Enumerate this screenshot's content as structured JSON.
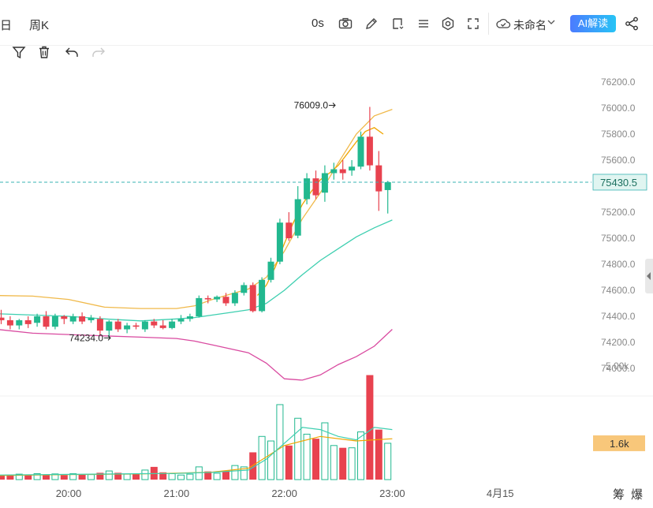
{
  "toolbar": {
    "tab_day": "日",
    "tab_week": "周K",
    "countdown": "0s",
    "chart_name": "未命名",
    "ai_label": "AI解读"
  },
  "corner": {
    "left": "筹",
    "right": "爆"
  },
  "colors": {
    "up": "#22b88f",
    "down": "#e8424f",
    "ma_yellow": "#f0a500",
    "boll_mid": "#3ecfb0",
    "boll_lower": "#d94aa0",
    "boll_upper": "#f0b94a",
    "price_line": "#3ab3b3",
    "price_tag": "#e0f5f1",
    "vol_tag": "#f8c77a"
  },
  "chart_data": {
    "type": "candlestick",
    "price_axis": {
      "ticks": [
        "76200.0",
        "76000.0",
        "75800.0",
        "75600.0",
        "75400.0",
        "75200.0",
        "75000.0",
        "74800.0",
        "74600.0",
        "74400.0",
        "74200.0",
        "74000.0"
      ],
      "range": [
        73900,
        76300
      ]
    },
    "time_axis": {
      "ticks": [
        {
          "label": "20:00",
          "t": 0
        },
        {
          "label": "21:00",
          "t": 12
        },
        {
          "label": "22:00",
          "t": 24
        },
        {
          "label": "23:00",
          "t": 36
        },
        {
          "label": "4月15",
          "t": 48
        }
      ],
      "bars_per_hour": 12
    },
    "current_price": "75430.5",
    "current_price_value": 75430.5,
    "high_label": "76009.0",
    "high_value": 76009,
    "high_t": 29.3,
    "low_label": "74234.0",
    "low_value": 74234,
    "low_t": 4.3,
    "candles": [
      {
        "t": -7.5,
        "o": 74390,
        "h": 74450,
        "c": 74370,
        "l": 74340
      },
      {
        "t": -6.5,
        "o": 74370,
        "h": 74400,
        "c": 74330,
        "l": 74300
      },
      {
        "t": -5.5,
        "o": 74330,
        "h": 74380,
        "c": 74370,
        "l": 74300
      },
      {
        "t": -4.5,
        "o": 74370,
        "h": 74400,
        "c": 74340,
        "l": 74310
      },
      {
        "t": -3.5,
        "o": 74350,
        "h": 74420,
        "c": 74400,
        "l": 74320
      },
      {
        "t": -2.5,
        "o": 74400,
        "h": 74440,
        "c": 74320,
        "l": 74300
      },
      {
        "t": -1.5,
        "o": 74320,
        "h": 74420,
        "c": 74400,
        "l": 74300
      },
      {
        "t": -0.5,
        "o": 74400,
        "h": 74410,
        "c": 74380,
        "l": 74340
      },
      {
        "t": 0.5,
        "o": 74360,
        "h": 74420,
        "c": 74400,
        "l": 74340
      },
      {
        "t": 1.5,
        "o": 74400,
        "h": 74430,
        "c": 74360,
        "l": 74340
      },
      {
        "t": 2.5,
        "o": 74370,
        "h": 74410,
        "c": 74390,
        "l": 74350
      },
      {
        "t": 3.5,
        "o": 74380,
        "h": 74400,
        "c": 74290,
        "l": 74260
      },
      {
        "t": 4.5,
        "o": 74290,
        "h": 74370,
        "c": 74360,
        "l": 74234
      },
      {
        "t": 5.5,
        "o": 74360,
        "h": 74380,
        "c": 74300,
        "l": 74280
      },
      {
        "t": 6.5,
        "o": 74300,
        "h": 74350,
        "c": 74330,
        "l": 74270
      },
      {
        "t": 7.5,
        "o": 74330,
        "h": 74350,
        "c": 74320,
        "l": 74300
      },
      {
        "t": 8.5,
        "o": 74300,
        "h": 74370,
        "c": 74360,
        "l": 74280
      },
      {
        "t": 9.5,
        "o": 74360,
        "h": 74380,
        "c": 74330,
        "l": 74310
      },
      {
        "t": 10.5,
        "o": 74330,
        "h": 74370,
        "c": 74310,
        "l": 74300
      },
      {
        "t": 11.5,
        "o": 74310,
        "h": 74380,
        "c": 74360,
        "l": 74300
      },
      {
        "t": 12.5,
        "o": 74360,
        "h": 74410,
        "c": 74380,
        "l": 74340
      },
      {
        "t": 13.5,
        "o": 74380,
        "h": 74420,
        "c": 74400,
        "l": 74360
      },
      {
        "t": 14.5,
        "o": 74400,
        "h": 74560,
        "c": 74540,
        "l": 74390
      },
      {
        "t": 15.5,
        "o": 74540,
        "h": 74560,
        "c": 74530,
        "l": 74500
      },
      {
        "t": 16.5,
        "o": 74530,
        "h": 74560,
        "c": 74550,
        "l": 74510
      },
      {
        "t": 17.5,
        "o": 74550,
        "h": 74580,
        "c": 74500,
        "l": 74480
      },
      {
        "t": 18.5,
        "o": 74500,
        "h": 74600,
        "c": 74580,
        "l": 74480
      },
      {
        "t": 19.5,
        "o": 74580,
        "h": 74660,
        "c": 74640,
        "l": 74560
      },
      {
        "t": 20.5,
        "o": 74640,
        "h": 74660,
        "c": 74440,
        "l": 74430
      },
      {
        "t": 21.5,
        "o": 74440,
        "h": 74700,
        "c": 74680,
        "l": 74430
      },
      {
        "t": 22.5,
        "o": 74680,
        "h": 74850,
        "c": 74820,
        "l": 74660
      },
      {
        "t": 23.5,
        "o": 74820,
        "h": 75150,
        "c": 75120,
        "l": 74800
      },
      {
        "t": 24.5,
        "o": 75120,
        "h": 75200,
        "c": 75000,
        "l": 74980
      },
      {
        "t": 25.5,
        "o": 75020,
        "h": 75400,
        "c": 75300,
        "l": 75000
      },
      {
        "t": 26.5,
        "o": 75300,
        "h": 75500,
        "c": 75460,
        "l": 75260
      },
      {
        "t": 27.5,
        "o": 75460,
        "h": 75520,
        "c": 75330,
        "l": 75300
      },
      {
        "t": 28.5,
        "o": 75350,
        "h": 75560,
        "c": 75500,
        "l": 75280
      },
      {
        "t": 29.5,
        "o": 75500,
        "h": 75580,
        "c": 75530,
        "l": 75450
      },
      {
        "t": 30.5,
        "o": 75530,
        "h": 75600,
        "c": 75500,
        "l": 75450
      },
      {
        "t": 31.5,
        "o": 75520,
        "h": 75600,
        "c": 75550,
        "l": 75480
      },
      {
        "t": 32.5,
        "o": 75550,
        "h": 75820,
        "c": 75780,
        "l": 75530
      },
      {
        "t": 33.5,
        "o": 75780,
        "h": 76009,
        "c": 75560,
        "l": 75520
      },
      {
        "t": 34.5,
        "o": 75560,
        "h": 75670,
        "c": 75360,
        "l": 75210
      },
      {
        "t": 35.5,
        "o": 75370,
        "h": 75440,
        "c": 75430.5,
        "l": 75190
      }
    ],
    "bollinger": {
      "upper": [
        [
          -8,
          74560
        ],
        [
          -4,
          74555
        ],
        [
          0,
          74530
        ],
        [
          4,
          74470
        ],
        [
          8,
          74460
        ],
        [
          12,
          74460
        ],
        [
          14,
          74480
        ],
        [
          16,
          74530
        ],
        [
          18,
          74570
        ],
        [
          20,
          74610
        ],
        [
          22,
          74700
        ],
        [
          24,
          74900
        ],
        [
          26,
          75150
        ],
        [
          28,
          75350
        ],
        [
          30,
          75580
        ],
        [
          32,
          75800
        ],
        [
          34,
          75940
        ],
        [
          36,
          75990
        ]
      ],
      "mid": [
        [
          -8,
          74420
        ],
        [
          -4,
          74410
        ],
        [
          0,
          74400
        ],
        [
          4,
          74380
        ],
        [
          8,
          74365
        ],
        [
          12,
          74380
        ],
        [
          14,
          74390
        ],
        [
          16,
          74410
        ],
        [
          18,
          74430
        ],
        [
          20,
          74450
        ],
        [
          22,
          74500
        ],
        [
          24,
          74600
        ],
        [
          26,
          74720
        ],
        [
          28,
          74830
        ],
        [
          30,
          74920
        ],
        [
          32,
          75010
        ],
        [
          34,
          75080
        ],
        [
          36,
          75140
        ]
      ],
      "lower": [
        [
          -8,
          74300
        ],
        [
          -4,
          74270
        ],
        [
          0,
          74260
        ],
        [
          4,
          74250
        ],
        [
          8,
          74240
        ],
        [
          12,
          74230
        ],
        [
          14,
          74210
        ],
        [
          16,
          74180
        ],
        [
          18,
          74150
        ],
        [
          20,
          74120
        ],
        [
          22,
          74040
        ],
        [
          24,
          73920
        ],
        [
          26,
          73910
        ],
        [
          28,
          73950
        ],
        [
          30,
          74030
        ],
        [
          32,
          74090
        ],
        [
          34,
          74170
        ],
        [
          36,
          74300
        ]
      ],
      "ma5": [
        [
          21,
          74560
        ],
        [
          22,
          74640
        ],
        [
          23,
          74780
        ],
        [
          24,
          74960
        ],
        [
          25,
          75120
        ],
        [
          26,
          75260
        ],
        [
          27,
          75360
        ],
        [
          28,
          75450
        ],
        [
          29,
          75500
        ],
        [
          30,
          75560
        ],
        [
          31,
          75650
        ],
        [
          32,
          75740
        ],
        [
          33,
          75820
        ],
        [
          34,
          75850
        ],
        [
          35,
          75800
        ]
      ]
    },
    "volume": {
      "axis_label": "5.00k",
      "axis_value": 5000,
      "current": "1.6k",
      "current_value": 1600,
      "bars": [
        {
          "t": -7.5,
          "v": 180,
          "up": false
        },
        {
          "t": -6.5,
          "v": 220,
          "up": false
        },
        {
          "t": -5.5,
          "v": 240,
          "up": true
        },
        {
          "t": -4.5,
          "v": 200,
          "up": false
        },
        {
          "t": -3.5,
          "v": 260,
          "up": true
        },
        {
          "t": -2.5,
          "v": 210,
          "up": false
        },
        {
          "t": -1.5,
          "v": 250,
          "up": true
        },
        {
          "t": -0.5,
          "v": 200,
          "up": false
        },
        {
          "t": 0.5,
          "v": 260,
          "up": true
        },
        {
          "t": 1.5,
          "v": 240,
          "up": false
        },
        {
          "t": 2.5,
          "v": 220,
          "up": true
        },
        {
          "t": 3.5,
          "v": 300,
          "up": false
        },
        {
          "t": 4.5,
          "v": 380,
          "up": true
        },
        {
          "t": 5.5,
          "v": 300,
          "up": false
        },
        {
          "t": 6.5,
          "v": 240,
          "up": true
        },
        {
          "t": 7.5,
          "v": 260,
          "up": false
        },
        {
          "t": 8.5,
          "v": 420,
          "up": true
        },
        {
          "t": 9.5,
          "v": 560,
          "up": false
        },
        {
          "t": 10.5,
          "v": 320,
          "up": false
        },
        {
          "t": 11.5,
          "v": 260,
          "up": true
        },
        {
          "t": 12.5,
          "v": 200,
          "up": true
        },
        {
          "t": 13.5,
          "v": 240,
          "up": true
        },
        {
          "t": 14.5,
          "v": 560,
          "up": true
        },
        {
          "t": 15.5,
          "v": 360,
          "up": false
        },
        {
          "t": 16.5,
          "v": 280,
          "up": true
        },
        {
          "t": 17.5,
          "v": 400,
          "up": false
        },
        {
          "t": 18.5,
          "v": 620,
          "up": true
        },
        {
          "t": 19.5,
          "v": 560,
          "up": true
        },
        {
          "t": 20.5,
          "v": 1200,
          "up": false
        },
        {
          "t": 21.5,
          "v": 1900,
          "up": true
        },
        {
          "t": 22.5,
          "v": 1700,
          "up": true
        },
        {
          "t": 23.5,
          "v": 3300,
          "up": true
        },
        {
          "t": 24.5,
          "v": 1500,
          "up": false
        },
        {
          "t": 25.5,
          "v": 2700,
          "up": true
        },
        {
          "t": 26.5,
          "v": 2000,
          "up": true
        },
        {
          "t": 27.5,
          "v": 1800,
          "up": false
        },
        {
          "t": 28.5,
          "v": 2500,
          "up": true
        },
        {
          "t": 29.5,
          "v": 1500,
          "up": true
        },
        {
          "t": 30.5,
          "v": 1400,
          "up": false
        },
        {
          "t": 31.5,
          "v": 1400,
          "up": true
        },
        {
          "t": 32.5,
          "v": 2100,
          "up": true
        },
        {
          "t": 33.5,
          "v": 4600,
          "up": false
        },
        {
          "t": 34.5,
          "v": 2200,
          "up": false
        },
        {
          "t": 35.5,
          "v": 1600,
          "up": true
        }
      ],
      "ma_yellow": [
        [
          -8,
          180
        ],
        [
          0,
          220
        ],
        [
          8,
          250
        ],
        [
          12,
          280
        ],
        [
          16,
          330
        ],
        [
          20,
          500
        ],
        [
          24,
          1500
        ],
        [
          28,
          1900
        ],
        [
          32,
          1700
        ],
        [
          36,
          1800
        ]
      ],
      "ma_green": [
        [
          -8,
          200
        ],
        [
          0,
          230
        ],
        [
          8,
          260
        ],
        [
          12,
          270
        ],
        [
          16,
          320
        ],
        [
          20,
          420
        ],
        [
          22,
          900
        ],
        [
          24,
          1600
        ],
        [
          26,
          2300
        ],
        [
          28,
          2200
        ],
        [
          30,
          1900
        ],
        [
          32,
          1750
        ],
        [
          34,
          2300
        ],
        [
          36,
          2200
        ]
      ]
    }
  }
}
